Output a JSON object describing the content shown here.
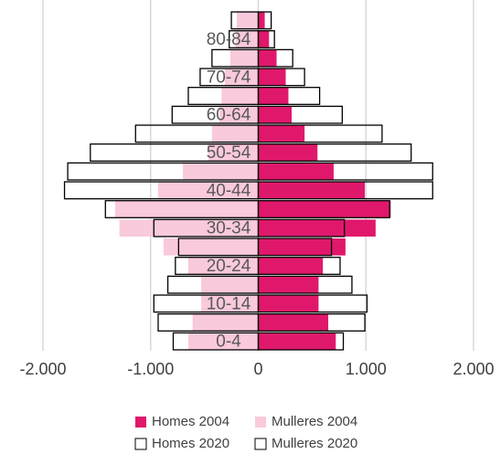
{
  "chart_data": {
    "type": "pyramid",
    "categories": [
      "0-4",
      null,
      "10-14",
      null,
      "20-24",
      null,
      "30-34",
      null,
      "40-44",
      null,
      "50-54",
      null,
      "60-64",
      null,
      "70-74",
      null,
      "80-84",
      null
    ],
    "series": [
      {
        "name": "Homes 2004",
        "color": "#e0186c",
        "style": "filled",
        "values": [
          720,
          650,
          560,
          560,
          600,
          810,
          1090,
          1230,
          990,
          700,
          550,
          430,
          310,
          280,
          255,
          170,
          100,
          60
        ]
      },
      {
        "name": "Mulleres 2004",
        "color": "#f9c9dc",
        "style": "filled",
        "values": [
          -650,
          -610,
          -530,
          -530,
          -650,
          -880,
          -1290,
          -1330,
          -930,
          -700,
          -460,
          -430,
          -360,
          -340,
          -310,
          -260,
          -210,
          -200
        ]
      },
      {
        "name": "Homes 2020",
        "color": "#000000",
        "style": "outline",
        "values": [
          790,
          990,
          1010,
          870,
          760,
          680,
          800,
          1220,
          1620,
          1620,
          1420,
          1150,
          780,
          570,
          430,
          320,
          150,
          120
        ]
      },
      {
        "name": "Mulleres 2020",
        "color": "#000000",
        "style": "outline",
        "values": [
          -790,
          -930,
          -970,
          -840,
          -770,
          -740,
          -970,
          -1420,
          -1800,
          -1770,
          -1560,
          -1140,
          -800,
          -650,
          -540,
          -430,
          -270,
          -250
        ]
      }
    ],
    "xlim": [
      -2000,
      2000
    ],
    "xticks": [
      {
        "value": -2000,
        "label": "-2.000"
      },
      {
        "value": -1000,
        "label": "-1.000"
      },
      0,
      {
        "value": 1000,
        "label": "1.000"
      },
      {
        "value": 2000,
        "label": "2.000"
      }
    ],
    "grid": true
  }
}
